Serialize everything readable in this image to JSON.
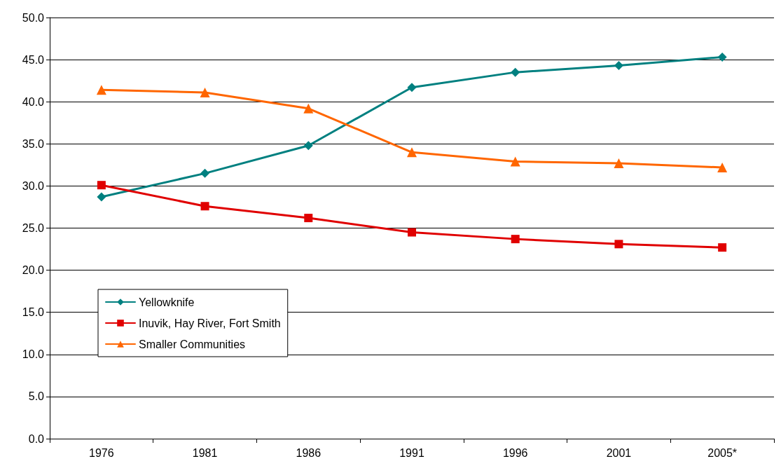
{
  "chart_data": {
    "type": "line",
    "categories": [
      "1976",
      "1981",
      "1986",
      "1991",
      "1996",
      "2001",
      "2005*"
    ],
    "series": [
      {
        "name": "Yellowknife",
        "color": "#008080",
        "marker": "diamond",
        "values": [
          28.7,
          31.5,
          34.8,
          41.7,
          43.5,
          44.3,
          45.3
        ]
      },
      {
        "name": "Inuvik, Hay River, Fort Smith",
        "color": "#e00000",
        "marker": "square",
        "values": [
          30.1,
          27.6,
          26.2,
          24.5,
          23.7,
          23.1,
          22.7
        ]
      },
      {
        "name": "Smaller Communities",
        "color": "#ff6600",
        "marker": "triangle",
        "values": [
          41.4,
          41.1,
          39.2,
          34.0,
          32.9,
          32.7,
          32.2
        ]
      }
    ],
    "ylim": [
      0,
      50
    ],
    "yticks": [
      {
        "value": 0,
        "label": "0.0"
      },
      {
        "value": 5,
        "label": "5.0"
      },
      {
        "value": 10,
        "label": "10.0"
      },
      {
        "value": 15,
        "label": "15.0"
      },
      {
        "value": 20,
        "label": "20.0"
      },
      {
        "value": 25,
        "label": "25.0"
      },
      {
        "value": 30,
        "label": "30.0"
      },
      {
        "value": 35,
        "label": "35.0"
      },
      {
        "value": 40,
        "label": "40.0"
      },
      {
        "value": 45,
        "label": "45.0"
      },
      {
        "value": 50,
        "label": "50.0"
      }
    ],
    "grid": "y",
    "legend": "left",
    "line_style": "solid"
  }
}
